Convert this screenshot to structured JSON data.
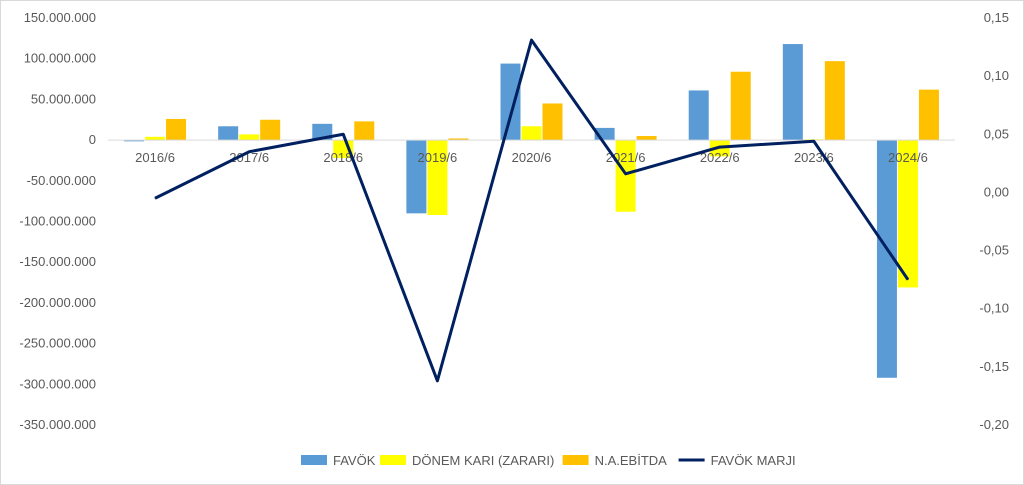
{
  "chart_data": {
    "type": "bar",
    "categories": [
      "2016/6",
      "2017/6",
      "2018/6",
      "2019/6",
      "2020/6",
      "2021/6",
      "2022/6",
      "2023/6",
      "2024/6"
    ],
    "series": [
      {
        "name": "FAVÖK",
        "type": "bar",
        "axis": "left",
        "color": "#5b9bd5",
        "values": [
          -1500000,
          17000000,
          20000000,
          -90000000,
          94000000,
          15000000,
          61000000,
          118000000,
          -292000000
        ]
      },
      {
        "name": "DÖNEM KARI (ZARARI)",
        "type": "bar",
        "axis": "left",
        "color": "#ffff00",
        "values": [
          4000000,
          7000000,
          -22000000,
          -92000000,
          17000000,
          -88000000,
          -20000000,
          1000000,
          -181000000
        ]
      },
      {
        "name": "N.A.EBİTDA",
        "type": "bar",
        "axis": "left",
        "color": "#ffc000",
        "values": [
          26000000,
          25000000,
          23000000,
          2000000,
          45000000,
          5000000,
          84000000,
          97000000,
          62000000
        ]
      },
      {
        "name": "FAVÖK MARJI",
        "type": "line",
        "axis": "right",
        "color": "#002060",
        "values": [
          -0.005,
          0.035,
          0.05,
          -0.162,
          0.131,
          0.016,
          0.039,
          0.044,
          -0.075
        ]
      }
    ],
    "y_left": {
      "min": -350000000,
      "max": 150000000,
      "step": 50000000,
      "tick_labels": [
        "150.000.000",
        "100.000.000",
        "50.000.000",
        "0",
        "-50.000.000",
        "-100.000.000",
        "-150.000.000",
        "-200.000.000",
        "-250.000.000",
        "-300.000.000",
        "-350.000.000"
      ]
    },
    "y_right": {
      "min": -0.2,
      "max": 0.15,
      "step": 0.05,
      "tick_labels": [
        "0,15",
        "0,10",
        "0,05",
        "0,00",
        "-0,05",
        "-0,10",
        "-0,15",
        "-0,20"
      ]
    },
    "legend_position": "bottom",
    "grid": false
  }
}
